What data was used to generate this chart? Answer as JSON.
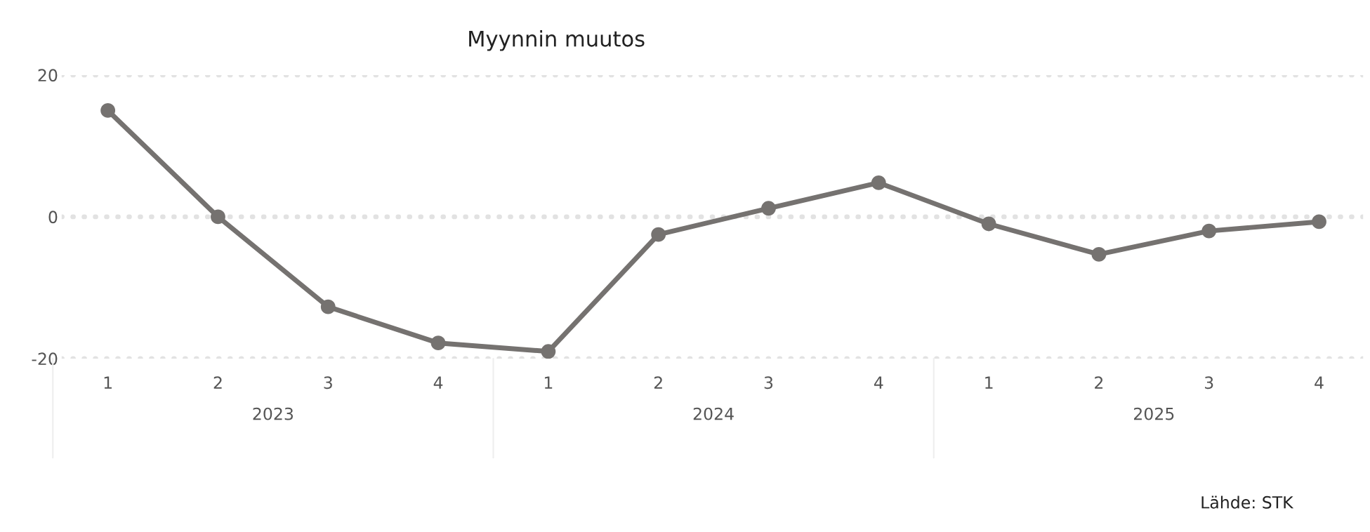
{
  "chart_data": {
    "type": "line",
    "title": "Myynnin muutos",
    "categories": [
      "1",
      "2",
      "3",
      "4",
      "1",
      "2",
      "3",
      "4",
      "1",
      "2",
      "3",
      "4"
    ],
    "series": [
      {
        "color": "#757270",
        "values": [
          15,
          0,
          -12.7,
          -17.8,
          -19,
          -2.5,
          1.2,
          4.8,
          -1,
          -5.3,
          -2,
          -0.7
        ]
      }
    ],
    "ylim": [
      -20,
      20
    ],
    "yticks": [
      -20,
      0,
      20
    ],
    "grid": "y",
    "marker": "circle",
    "line_style": "solid",
    "annotations": [
      "2023",
      "2024",
      "2025",
      "Lähde: STK"
    ]
  }
}
